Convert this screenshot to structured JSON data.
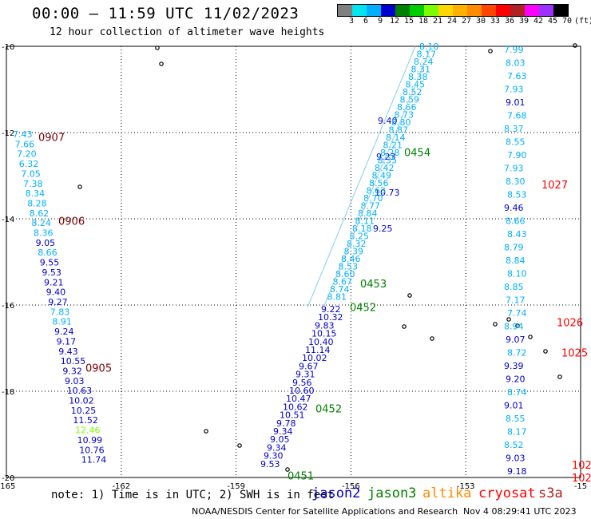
{
  "header": {
    "title": "00:00 – 11:59 UTC 11/02/2023",
    "subtitle": "12 hour collection of altimeter wave heights"
  },
  "colorbar": {
    "colors": [
      "#808080",
      "#00e5ee",
      "#00b0ff",
      "#0000cd",
      "#008000",
      "#00cd00",
      "#7cfc00",
      "#ffd700",
      "#ffb000",
      "#ff8c00",
      "#ff4500",
      "#ff0000",
      "#b22222",
      "#ff00ff",
      "#9b30ff",
      "#000000"
    ],
    "labels": [
      "3",
      "6",
      "9",
      "12",
      "15",
      "18",
      "21",
      "24",
      "27",
      "30",
      "33",
      "36",
      "39",
      "42",
      "45",
      "70",
      "(ft)"
    ]
  },
  "axes": {
    "lon_ticks": [
      "-165",
      "-162",
      "-159",
      "-156",
      "-153",
      "-15"
    ],
    "lat_ticks": [
      "-10",
      "-12",
      "-14",
      "-16",
      "-18",
      "-20"
    ]
  },
  "chart_data": {
    "type": "scatter",
    "xlim": [
      -165,
      -150
    ],
    "ylim": [
      -20,
      -10
    ],
    "groups": [
      {
        "color": "#7a0000",
        "times": [
          {
            "t": "0907",
            "lat": -12.1
          },
          {
            "t": "0906",
            "lat": -14.05
          },
          {
            "t": "0905",
            "lat": -17.45
          }
        ],
        "values": [
          "7.43",
          "7.66",
          "7.20",
          "6.32",
          "7.05",
          "7.38",
          "8.34",
          "8.28",
          "8.62",
          "8.24",
          "8.36",
          "9.05",
          "8.66",
          "9.55",
          "9.53",
          "9.21",
          "9.40",
          "9.27",
          "7.83",
          "8.91",
          "9.24",
          "9.17",
          "9.43",
          "10.55",
          "9.32",
          "9.03",
          "10.63",
          "10.02",
          "10.25",
          "11.52",
          "12.46",
          "10.99",
          "10.76",
          "11.74"
        ]
      },
      {
        "color": "#008000",
        "times": [
          {
            "t": "0454",
            "lat": -12.45
          },
          {
            "t": "0453",
            "lat": -15.5
          },
          {
            "t": "0452",
            "lat": -16.05
          },
          {
            "t": "0452",
            "lat": -18.4
          },
          {
            "t": "0451",
            "lat": -19.95
          }
        ],
        "values": [
          "9.22",
          "10.32",
          "9.83",
          "10.15",
          "10.40",
          "11.14",
          "10.02",
          "9.67",
          "9.31",
          "9.56",
          "10.60",
          "10.47",
          "10.62",
          "10.51",
          "9.78",
          "9.34",
          "9.05",
          "9.34",
          "9.30",
          "9.53",
          "9.25",
          "10.73",
          "9.23",
          "9.40"
        ]
      },
      {
        "color": "#ff0000",
        "times": [
          {
            "t": "1027",
            "lat": -13.2
          },
          {
            "t": "1026",
            "lat": -16.4
          },
          {
            "t": "1025",
            "lat": -17.1
          },
          {
            "t": "102",
            "lat": -19.7
          },
          {
            "t": "102",
            "lat": -20.0
          }
        ],
        "values": [
          "7.99",
          "8.03",
          "7.63",
          "7.93",
          "9.01",
          "7.68",
          "8.37",
          "8.55",
          "7.90",
          "7.93",
          "8.30",
          "8.53",
          "9.46",
          "8.66",
          "8.43",
          "8.79",
          "8.84",
          "8.10",
          "8.85",
          "7.17",
          "7.74",
          "8.94",
          "9.07",
          "8.72",
          "9.39",
          "9.20",
          "8.74",
          "9.01",
          "8.55",
          "8.17",
          "8.52",
          "9.03",
          "9.18"
        ]
      }
    ]
  },
  "legend": {
    "note": "note:  1) Time is in UTC; 2) SWH is in feet",
    "satellites": [
      {
        "name": "jason2",
        "color": "#0000cd"
      },
      {
        "name": "jason3",
        "color": "#008000"
      },
      {
        "name": "altika",
        "color": "#ff8c00"
      },
      {
        "name": "cryosat",
        "color": "#ff0000"
      },
      {
        "name": "s3a",
        "color": "#b22222"
      }
    ]
  },
  "footer": {
    "credit": "NOAA/NESDIS Center for Satellite Applications and Research",
    "timestamp": "Nov  4 08:29:41 UTC 2023"
  }
}
